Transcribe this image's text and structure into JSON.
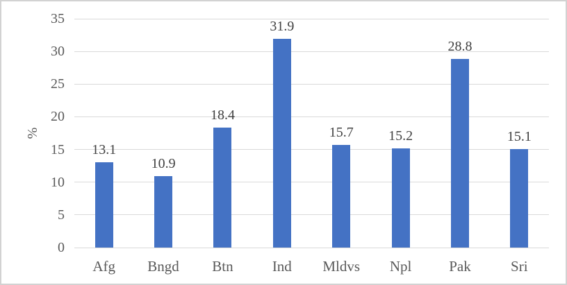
{
  "chart_data": {
    "type": "bar",
    "title": "",
    "xlabel": "",
    "ylabel": "%",
    "categories": [
      "Afg",
      "Bngd",
      "Btn",
      "Ind",
      "Mldvs",
      "Npl",
      "Pak",
      "Sri"
    ],
    "values": [
      13.1,
      10.9,
      18.4,
      31.9,
      15.7,
      15.2,
      28.8,
      15.1
    ],
    "data_labels": [
      "13.1",
      "10.9",
      "18.4",
      "31.9",
      "15.7",
      "15.2",
      "28.8",
      "15.1"
    ],
    "ylim": [
      0,
      35
    ],
    "yticks": [
      0,
      5,
      10,
      15,
      20,
      25,
      30,
      35
    ],
    "grid": true,
    "legend": false,
    "bar_color": "#4472c4",
    "gridline_color": "#d9d9d9",
    "axis_text_color": "#595959",
    "data_label_color": "#404040",
    "frame_border_color": "#d2d2d2"
  }
}
